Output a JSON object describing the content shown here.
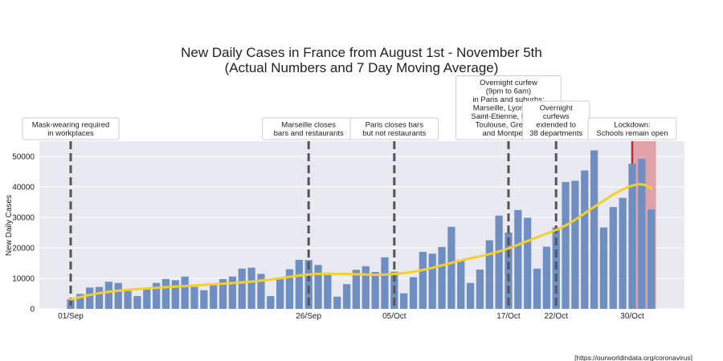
{
  "chart_data": {
    "type": "bar",
    "title": [
      "New Daily Cases in France from August 1st - November 5th",
      "(Actual Numbers and 7 Day Moving Average)"
    ],
    "ylabel": "New Daily Cases",
    "ylim": [
      0,
      55000
    ],
    "yticks": [
      0,
      10000,
      20000,
      30000,
      40000,
      50000
    ],
    "x_start": "2020-09-01",
    "x_end": "2020-11-05",
    "xticks": [
      {
        "date": "2020-09-01",
        "label": "01/Sep"
      },
      {
        "date": "2020-09-26",
        "label": "26/Sep"
      },
      {
        "date": "2020-10-05",
        "label": "05/Oct"
      },
      {
        "date": "2020-10-17",
        "label": "17/Oct"
      },
      {
        "date": "2020-10-22",
        "label": "22/Oct"
      },
      {
        "date": "2020-10-30",
        "label": "30/Oct"
      }
    ],
    "bar_color": "#6f8fc3",
    "line_color": "#f5cf2a",
    "grid": true,
    "background": "#e9e9f1",
    "series": [
      {
        "kind": "bar",
        "points": [
          {
            "date": "2020-09-01",
            "value": 3100
          },
          {
            "date": "2020-09-02",
            "value": 4900
          },
          {
            "date": "2020-09-03",
            "value": 7000
          },
          {
            "date": "2020-09-04",
            "value": 7200
          },
          {
            "date": "2020-09-05",
            "value": 8900
          },
          {
            "date": "2020-09-06",
            "value": 8500
          },
          {
            "date": "2020-09-07",
            "value": 6500
          },
          {
            "date": "2020-09-08",
            "value": 4200
          },
          {
            "date": "2020-09-09",
            "value": 6500
          },
          {
            "date": "2020-09-10",
            "value": 8500
          },
          {
            "date": "2020-09-11",
            "value": 9800
          },
          {
            "date": "2020-09-12",
            "value": 9400
          },
          {
            "date": "2020-09-13",
            "value": 10600
          },
          {
            "date": "2020-09-14",
            "value": 7200
          },
          {
            "date": "2020-09-15",
            "value": 6100
          },
          {
            "date": "2020-09-16",
            "value": 7900
          },
          {
            "date": "2020-09-17",
            "value": 9800
          },
          {
            "date": "2020-09-18",
            "value": 10600
          },
          {
            "date": "2020-09-19",
            "value": 13200
          },
          {
            "date": "2020-09-20",
            "value": 13500
          },
          {
            "date": "2020-09-21",
            "value": 11500
          },
          {
            "date": "2020-09-22",
            "value": 4200
          },
          {
            "date": "2020-09-23",
            "value": 10000
          },
          {
            "date": "2020-09-24",
            "value": 13000
          },
          {
            "date": "2020-09-25",
            "value": 16100
          },
          {
            "date": "2020-09-26",
            "value": 16000
          },
          {
            "date": "2020-09-27",
            "value": 14400
          },
          {
            "date": "2020-09-28",
            "value": 11100
          },
          {
            "date": "2020-09-29",
            "value": 4000
          },
          {
            "date": "2020-09-30",
            "value": 8100
          },
          {
            "date": "2020-10-01",
            "value": 12800
          },
          {
            "date": "2020-10-02",
            "value": 14000
          },
          {
            "date": "2020-10-03",
            "value": 12100
          },
          {
            "date": "2020-10-04",
            "value": 16900
          },
          {
            "date": "2020-10-05",
            "value": 12200
          },
          {
            "date": "2020-10-06",
            "value": 5100
          },
          {
            "date": "2020-10-07",
            "value": 10400
          },
          {
            "date": "2020-10-08",
            "value": 18700
          },
          {
            "date": "2020-10-09",
            "value": 18100
          },
          {
            "date": "2020-10-10",
            "value": 20300
          },
          {
            "date": "2020-10-11",
            "value": 26900
          },
          {
            "date": "2020-10-12",
            "value": 16100
          },
          {
            "date": "2020-10-13",
            "value": 8500
          },
          {
            "date": "2020-10-14",
            "value": 12900
          },
          {
            "date": "2020-10-15",
            "value": 22500
          },
          {
            "date": "2020-10-16",
            "value": 30600
          },
          {
            "date": "2020-10-17",
            "value": 25000
          },
          {
            "date": "2020-10-18",
            "value": 32400
          },
          {
            "date": "2020-10-19",
            "value": 29900
          },
          {
            "date": "2020-10-20",
            "value": 13200
          },
          {
            "date": "2020-10-21",
            "value": 20400
          },
          {
            "date": "2020-10-22",
            "value": 26700
          },
          {
            "date": "2020-10-23",
            "value": 41600
          },
          {
            "date": "2020-10-24",
            "value": 42000
          },
          {
            "date": "2020-10-25",
            "value": 45400
          },
          {
            "date": "2020-10-26",
            "value": 52000
          },
          {
            "date": "2020-10-27",
            "value": 26700
          },
          {
            "date": "2020-10-28",
            "value": 33400
          },
          {
            "date": "2020-10-29",
            "value": 36400
          },
          {
            "date": "2020-10-30",
            "value": 47600
          },
          {
            "date": "2020-10-31",
            "value": 49200
          },
          {
            "date": "2020-11-01",
            "value": 32600
          }
        ]
      },
      {
        "kind": "line",
        "points": [
          {
            "date": "2020-09-01",
            "value": 3100
          },
          {
            "date": "2020-09-03",
            "value": 4600
          },
          {
            "date": "2020-09-05",
            "value": 5700
          },
          {
            "date": "2020-09-08",
            "value": 6500
          },
          {
            "date": "2020-09-13",
            "value": 7500
          },
          {
            "date": "2020-09-18",
            "value": 8400
          },
          {
            "date": "2020-09-22",
            "value": 9500
          },
          {
            "date": "2020-09-26",
            "value": 11500
          },
          {
            "date": "2020-09-30",
            "value": 11500
          },
          {
            "date": "2020-10-04",
            "value": 11000
          },
          {
            "date": "2020-10-08",
            "value": 12500
          },
          {
            "date": "2020-10-12",
            "value": 16000
          },
          {
            "date": "2020-10-16",
            "value": 18500
          },
          {
            "date": "2020-10-20",
            "value": 23500
          },
          {
            "date": "2020-10-23",
            "value": 27000
          },
          {
            "date": "2020-10-26",
            "value": 33500
          },
          {
            "date": "2020-10-29",
            "value": 39500
          },
          {
            "date": "2020-10-31",
            "value": 41300
          },
          {
            "date": "2020-11-01",
            "value": 39500
          }
        ]
      }
    ],
    "annotations": [
      {
        "date": "2020-09-01",
        "label": [
          "Mask-wearing required",
          "in workplaces"
        ]
      },
      {
        "date": "2020-09-26",
        "label": [
          "Marseille closes",
          "bars and restaurants"
        ]
      },
      {
        "date": "2020-10-05",
        "label": [
          "Paris closes bars",
          "but not restaurants"
        ]
      },
      {
        "date": "2020-10-17",
        "label": [
          "Overnight curfew",
          "(9pm to 6am)",
          "in Paris and suburbs;",
          "Marseille, Lyon, Lille,",
          "Saint-Etienne, Rouen,",
          "Toulouse, Grenoble",
          "and Montpellier"
        ]
      },
      {
        "date": "2020-10-22",
        "label": [
          "Overnight",
          "curfews",
          "extended to",
          "38 departments"
        ]
      },
      {
        "date": "2020-10-30",
        "label": [
          "Lockdown:",
          "Schools remain open"
        ]
      }
    ],
    "lockdown_span": {
      "from": "2020-10-30",
      "to": "2020-11-01",
      "color": "#d98a8f",
      "line_color": "#b03040"
    },
    "source": "[https://ourworldindata.org/coronavirus]"
  }
}
